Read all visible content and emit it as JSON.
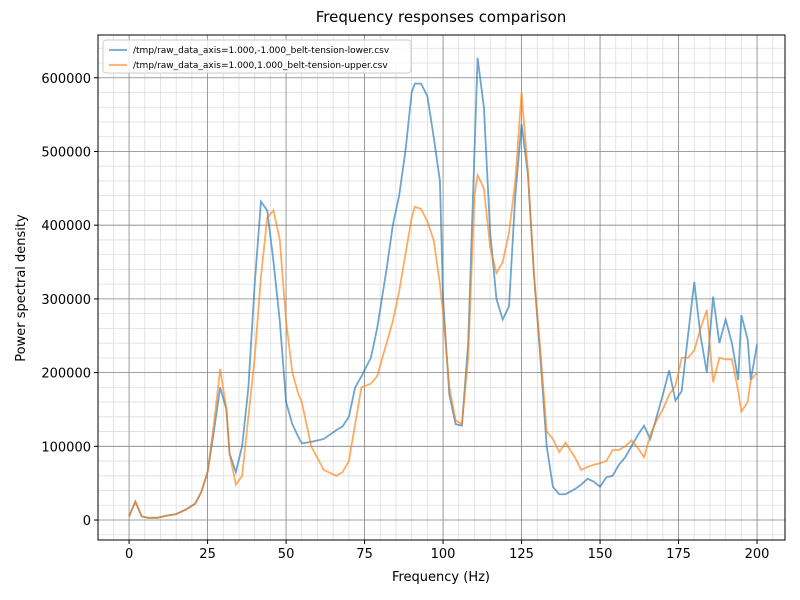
{
  "chart_data": {
    "type": "line",
    "title": "Frequency responses comparison",
    "xlabel": "Frequency (Hz)",
    "ylabel": "Power spectral density",
    "x": [
      0,
      2,
      4,
      6,
      9,
      12,
      15,
      18,
      21,
      23,
      25,
      27,
      29,
      31,
      32,
      34,
      36,
      38,
      40,
      42,
      44,
      46,
      48,
      50,
      52,
      54,
      55,
      58,
      62,
      66,
      68,
      70,
      72,
      74,
      77,
      79,
      82,
      84,
      86,
      88,
      90,
      91,
      93,
      95,
      97,
      99,
      100,
      102,
      104,
      106,
      108,
      110,
      111,
      113,
      115,
      117,
      119,
      121,
      123,
      125,
      127,
      129,
      131,
      133,
      135,
      137,
      139,
      142,
      144,
      146,
      148,
      150,
      152,
      154,
      156,
      158,
      160,
      162,
      164,
      166,
      168,
      170,
      172,
      174,
      176,
      178,
      180,
      182,
      184,
      186,
      188,
      190,
      192,
      194,
      195,
      197,
      198,
      200
    ],
    "series": [
      {
        "name": "/tmp/raw_data_axis=1.000,-1.000_belt-tension-lower.csv",
        "color": "#1f77b4",
        "values": [
          5000,
          25000,
          5000,
          3000,
          3000,
          6000,
          8000,
          14000,
          22000,
          38000,
          65000,
          120000,
          180000,
          150000,
          90000,
          65000,
          100000,
          180000,
          320000,
          432000,
          420000,
          350000,
          270000,
          160000,
          130000,
          112000,
          104000,
          106000,
          110000,
          122000,
          127000,
          140000,
          180000,
          195000,
          220000,
          260000,
          340000,
          400000,
          440000,
          500000,
          580000,
          592000,
          592000,
          575000,
          520000,
          460000,
          300000,
          170000,
          130000,
          128000,
          240000,
          500000,
          627000,
          560000,
          390000,
          300000,
          272000,
          290000,
          440000,
          537000,
          470000,
          330000,
          220000,
          100000,
          45000,
          35000,
          35000,
          42000,
          48000,
          56000,
          52000,
          45000,
          58000,
          60000,
          75000,
          85000,
          100000,
          115000,
          128000,
          110000,
          140000,
          170000,
          203000,
          162000,
          175000,
          250000,
          323000,
          250000,
          200000,
          303000,
          240000,
          272000,
          240000,
          190000,
          278000,
          245000,
          190000,
          238000
        ]
      },
      {
        "name": "/tmp/raw_data_axis=1.000,1.000_belt-tension-upper.csv",
        "color": "#ff7f0e",
        "values": [
          5000,
          25000,
          5000,
          3000,
          3000,
          6000,
          8000,
          14000,
          22000,
          38000,
          65000,
          130000,
          205000,
          150000,
          90000,
          48000,
          60000,
          140000,
          220000,
          330000,
          410000,
          420000,
          380000,
          270000,
          200000,
          170000,
          160000,
          100000,
          68000,
          60000,
          65000,
          80000,
          130000,
          180000,
          185000,
          195000,
          240000,
          270000,
          310000,
          360000,
          410000,
          425000,
          422000,
          405000,
          380000,
          320000,
          280000,
          180000,
          135000,
          130000,
          220000,
          440000,
          468000,
          450000,
          370000,
          335000,
          350000,
          390000,
          460000,
          580000,
          475000,
          330000,
          230000,
          120000,
          110000,
          92000,
          105000,
          85000,
          68000,
          72000,
          75000,
          77000,
          80000,
          95000,
          95000,
          100000,
          108000,
          98000,
          85000,
          115000,
          135000,
          150000,
          170000,
          182000,
          220000,
          220000,
          230000,
          260000,
          285000,
          187000,
          220000,
          218000,
          218000,
          175000,
          147000,
          160000,
          190000,
          200000
        ]
      }
    ],
    "xlim": [
      -9.9,
      208.9
    ],
    "ylim": [
      -27100,
      658000
    ],
    "xticks": [
      0,
      25,
      50,
      75,
      100,
      125,
      150,
      175,
      200
    ],
    "yticks": [
      0,
      100000,
      200000,
      300000,
      400000,
      500000,
      600000
    ],
    "grid": true,
    "minor_grid": true,
    "legend": "upper left"
  }
}
